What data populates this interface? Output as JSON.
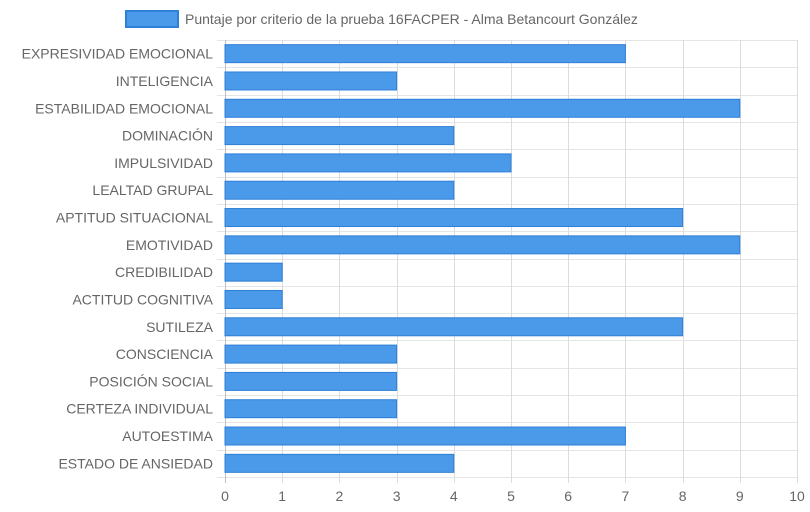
{
  "chart_data": {
    "type": "bar",
    "orientation": "horizontal",
    "categories": [
      "EXPRESIVIDAD EMOCIONAL",
      "INTELIGENCIA",
      "ESTABILIDAD EMOCIONAL",
      "DOMINACIÓN",
      "IMPULSIVIDAD",
      "LEALTAD GRUPAL",
      "APTITUD SITUACIONAL",
      "EMOTIVIDAD",
      "CREDIBILIDAD",
      "ACTITUD COGNITIVA",
      "SUTILEZA",
      "CONSCIENCIA",
      "POSICIÓN SOCIAL",
      "CERTEZA INDIVIDUAL",
      "AUTOESTIMA",
      "ESTADO DE ANSIEDAD"
    ],
    "series": [
      {
        "name": "Puntaje por criterio de la prueba 16FACPER - Alma Betancourt González",
        "values": [
          7,
          3,
          9,
          4,
          5,
          4,
          8,
          9,
          1,
          1,
          8,
          3,
          3,
          3,
          7,
          4
        ],
        "color": "#4a9ae9",
        "border_color": "#2f7fd6"
      }
    ],
    "x_ticks": [
      "0",
      "1",
      "2",
      "3",
      "4",
      "5",
      "6",
      "7",
      "8",
      "9",
      "10"
    ],
    "xlim": [
      0,
      10
    ],
    "grid": true,
    "legend": "top"
  }
}
